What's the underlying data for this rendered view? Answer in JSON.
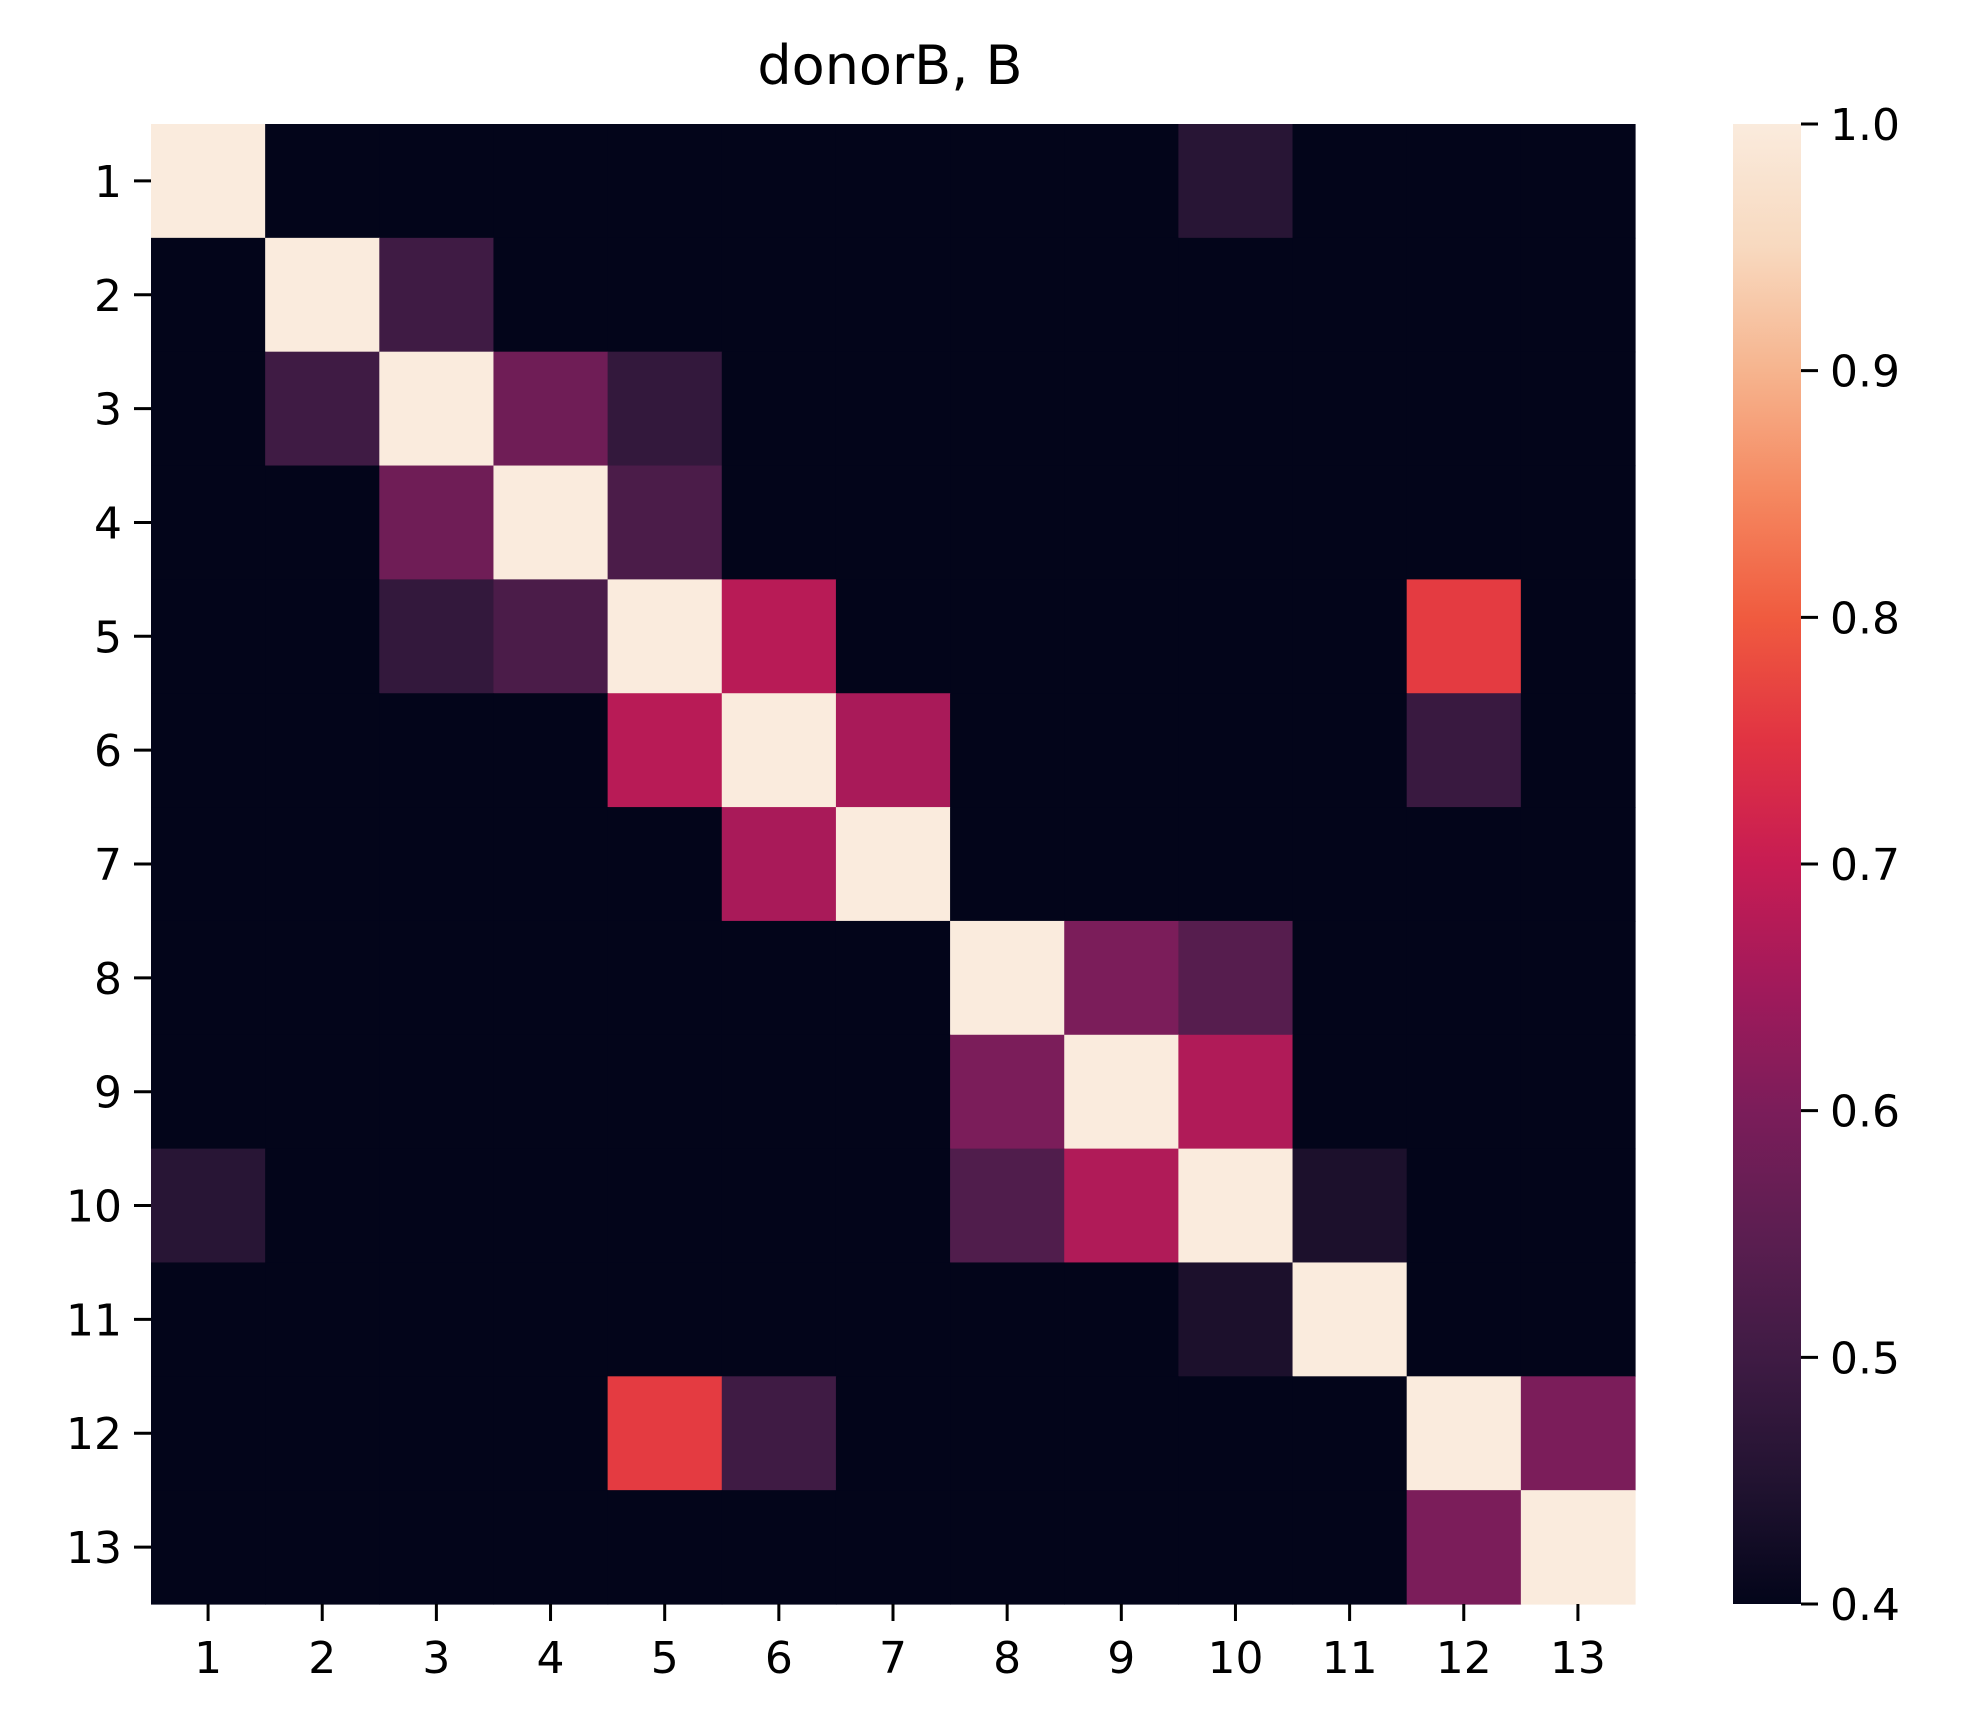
{
  "chart_data": {
    "type": "heatmap",
    "title": "donorB, B",
    "xlabel": "",
    "ylabel": "",
    "x_categories": [
      "1",
      "2",
      "3",
      "4",
      "5",
      "6",
      "7",
      "8",
      "9",
      "10",
      "11",
      "12",
      "13"
    ],
    "y_categories": [
      "1",
      "2",
      "3",
      "4",
      "5",
      "6",
      "7",
      "8",
      "9",
      "10",
      "11",
      "12",
      "13"
    ],
    "values": [
      [
        1.0,
        0.4,
        0.4,
        0.4,
        0.4,
        0.4,
        0.4,
        0.4,
        0.4,
        0.46,
        0.4,
        0.4,
        0.4
      ],
      [
        0.4,
        1.0,
        0.5,
        0.4,
        0.4,
        0.4,
        0.4,
        0.4,
        0.4,
        0.4,
        0.4,
        0.4,
        0.4
      ],
      [
        0.4,
        0.5,
        1.0,
        0.58,
        0.48,
        0.4,
        0.4,
        0.4,
        0.4,
        0.4,
        0.4,
        0.4,
        0.4
      ],
      [
        0.4,
        0.4,
        0.58,
        1.0,
        0.52,
        0.4,
        0.4,
        0.4,
        0.4,
        0.4,
        0.4,
        0.4,
        0.4
      ],
      [
        0.4,
        0.4,
        0.48,
        0.52,
        1.0,
        0.68,
        0.4,
        0.4,
        0.4,
        0.4,
        0.4,
        0.76,
        0.4
      ],
      [
        0.4,
        0.4,
        0.4,
        0.4,
        0.68,
        1.0,
        0.66,
        0.4,
        0.4,
        0.4,
        0.4,
        0.49,
        0.4
      ],
      [
        0.4,
        0.4,
        0.4,
        0.4,
        0.4,
        0.66,
        1.0,
        0.4,
        0.4,
        0.4,
        0.4,
        0.4,
        0.4
      ],
      [
        0.4,
        0.4,
        0.4,
        0.4,
        0.4,
        0.4,
        0.4,
        1.0,
        0.6,
        0.54,
        0.4,
        0.4,
        0.4
      ],
      [
        0.4,
        0.4,
        0.4,
        0.4,
        0.4,
        0.4,
        0.4,
        0.6,
        1.0,
        0.67,
        0.4,
        0.4,
        0.4
      ],
      [
        0.46,
        0.4,
        0.4,
        0.4,
        0.4,
        0.4,
        0.4,
        0.53,
        0.67,
        1.0,
        0.44,
        0.4,
        0.4
      ],
      [
        0.4,
        0.4,
        0.4,
        0.4,
        0.4,
        0.4,
        0.4,
        0.4,
        0.4,
        0.44,
        1.0,
        0.4,
        0.4
      ],
      [
        0.4,
        0.4,
        0.4,
        0.4,
        0.76,
        0.5,
        0.4,
        0.4,
        0.4,
        0.4,
        0.4,
        1.0,
        0.6
      ],
      [
        0.4,
        0.4,
        0.4,
        0.4,
        0.4,
        0.4,
        0.4,
        0.4,
        0.4,
        0.4,
        0.4,
        0.6,
        1.0
      ]
    ],
    "colorbar": {
      "vmin": 0.4,
      "vmax": 1.0,
      "ticks": [
        "0.4",
        "0.5",
        "0.6",
        "0.7",
        "0.8",
        "0.9",
        "1.0"
      ],
      "colormap_stops": [
        "#03051a",
        "#221331",
        "#3f1b44",
        "#5c1e51",
        "#7b1d5a",
        "#a11a5b",
        "#c71c53",
        "#e13342",
        "#f05b3f",
        "#f58860",
        "#f6b48e",
        "#f8d9bf",
        "#faebdd"
      ]
    }
  }
}
